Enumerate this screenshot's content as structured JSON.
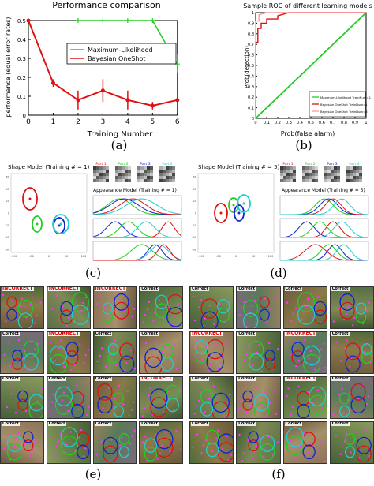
{
  "panels": {
    "a": {
      "label": "(a)"
    },
    "b": {
      "label": "(b)"
    },
    "c": {
      "label": "(c)"
    },
    "d": {
      "label": "(d)"
    },
    "e": {
      "label": "(e)"
    },
    "f": {
      "label": "(f)"
    }
  },
  "chart_data": [
    {
      "type": "line",
      "title": "Performance comparison",
      "xlabel": "Training Number",
      "ylabel": "performance (equal error rates)",
      "x": [
        0,
        1,
        2,
        3,
        4,
        5,
        6
      ],
      "xlim": [
        0,
        6
      ],
      "ylim": [
        0,
        0.5
      ],
      "xticks": [
        "0",
        "1",
        "2",
        "3",
        "4",
        "5",
        "6"
      ],
      "yticks": [
        "0",
        "0.1",
        "0.2",
        "0.3",
        "0.4",
        "0.5"
      ],
      "legend_position": "upper-right",
      "series": [
        {
          "name": "Maximum-Likelihood",
          "color": "#22cc22",
          "x": [
            2,
            3,
            4,
            5,
            6
          ],
          "y": [
            0.5,
            0.5,
            0.5,
            0.5,
            0.27
          ],
          "err": [
            0,
            0,
            0,
            0,
            0.05
          ]
        },
        {
          "name": "Bayesian OneShot",
          "color": "#dd1111",
          "x": [
            0,
            1,
            2,
            3,
            4,
            5,
            6
          ],
          "y": [
            0.5,
            0.17,
            0.08,
            0.13,
            0.08,
            0.05,
            0.08
          ],
          "err": [
            0,
            0.02,
            0.05,
            0.06,
            0.05,
            0.02,
            0.04
          ]
        }
      ]
    },
    {
      "type": "line",
      "title": "Sample ROC of different learning models",
      "xlabel": "Prob(false alarm)",
      "ylabel": "Prob(detection)",
      "xlim": [
        0,
        1
      ],
      "ylim": [
        0,
        1
      ],
      "xticks": [
        "0",
        "0.1",
        "0.2",
        "0.3",
        "0.4",
        "0.5",
        "0.6",
        "0.7",
        "0.8",
        "0.9",
        "1"
      ],
      "yticks": [
        "0",
        "0.1",
        "0.2",
        "0.3",
        "0.4",
        "0.5",
        "0.6",
        "0.7",
        "0.8",
        "0.9",
        "1"
      ],
      "legend_position": "lower-right",
      "series": [
        {
          "name": "Maximum-Likelihood TrainNum=1",
          "color": "#22cc22",
          "x": [
            0,
            1
          ],
          "y": [
            0,
            1
          ]
        },
        {
          "name": "Bayesian OneShot TrainNum=1",
          "color": "#dd1111",
          "x": [
            0,
            0,
            0.02,
            0.02,
            0.05,
            0.05,
            0.1,
            0.1,
            0.2,
            0.2,
            0.3,
            1
          ],
          "y": [
            0,
            0.72,
            0.72,
            0.85,
            0.85,
            0.9,
            0.9,
            0.94,
            0.94,
            0.97,
            1,
            1
          ]
        },
        {
          "name": "Bayesian OneShot TrainNum=5",
          "color": "#ff9999",
          "x": [
            0,
            0,
            0.03,
            0.03,
            0.1,
            1
          ],
          "y": [
            0,
            0.92,
            0.92,
            0.98,
            1,
            1
          ]
        }
      ]
    }
  ],
  "shape_model_c": {
    "title": "Shape Model (Training # = 1)",
    "appearance_title": "Appearance Model (Training # = 1)",
    "parts": [
      "Part 1",
      "Part 2",
      "Part 3",
      "Part 4"
    ],
    "yticks": [
      "60",
      "40",
      "20",
      "0",
      "-20",
      "-40",
      "-60"
    ],
    "xticks": [
      "-100",
      "-50",
      "0",
      "50",
      "100"
    ]
  },
  "shape_model_d": {
    "title": "Shape Model (Training # = 5)",
    "appearance_title": "Appearance Model (Training # = 5)",
    "parts": [
      "Part 1",
      "Part 2",
      "Part 3",
      "Part 4"
    ],
    "yticks": [
      "60",
      "40",
      "20",
      "0",
      "-20",
      "-40",
      "-60"
    ],
    "xticks": [
      "-100",
      "-50",
      "0",
      "50",
      "100"
    ]
  },
  "grid_e": {
    "labels": [
      "INCORRECT",
      "INCORRECT",
      "INCORRECT",
      "Correct",
      "Correct",
      "INCORRECT",
      "Correct",
      "Correct",
      "Correct",
      "Correct",
      "Correct",
      "INCORRECT",
      "Correct",
      "Correct",
      "Correct",
      "Correct"
    ]
  },
  "grid_f": {
    "labels": [
      "Correct",
      "Correct",
      "Correct",
      "Correct",
      "INCORRECT",
      "Correct",
      "INCORRECT",
      "Correct",
      "Correct",
      "Correct",
      "INCORRECT",
      "Correct",
      "Correct",
      "Correct",
      "Correct",
      "Correct"
    ]
  }
}
